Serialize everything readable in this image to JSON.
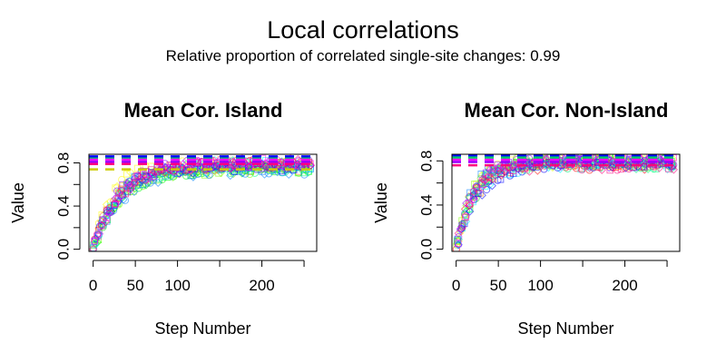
{
  "title": "Local correlations",
  "subtitle": "Relative proportion of correlated single-site changes: 0.99",
  "colors": {
    "series": [
      "#ff0000",
      "#ff8000",
      "#ffff00",
      "#80ff00",
      "#00ff00",
      "#00ff80",
      "#00ffff",
      "#0080ff",
      "#0000ff",
      "#8000ff",
      "#ff00ff",
      "#ff0080"
    ],
    "reference_lines": [
      "#0000ff",
      "#00cc66",
      "#ff00ff",
      "#9900ff",
      "#ff0080",
      "#cccc00"
    ]
  },
  "chart_data": [
    {
      "type": "scatter",
      "title": "Mean Cor. Island",
      "xlabel": "Step Number",
      "ylabel": "Value",
      "xlim": [
        -5,
        265
      ],
      "ylim": [
        -0.02,
        0.88
      ],
      "x_ticks": [
        0,
        50,
        100,
        150,
        200,
        250
      ],
      "x_tick_labels": [
        "0",
        "50",
        "100",
        "",
        "200",
        ""
      ],
      "y_ticks": [
        0.0,
        0.4,
        0.8
      ],
      "y_tick_labels": [
        "0.0",
        "0.4",
        "0.8"
      ],
      "y_minor_ticks": [
        0.2,
        0.6
      ],
      "grid": false,
      "reference_lines_y": [
        0.86,
        0.84,
        0.83,
        0.81,
        0.79,
        0.74
      ],
      "curve_model": {
        "asymptote": 0.77,
        "rate": 0.036,
        "n_series": 12,
        "points_per_series": 55
      }
    },
    {
      "type": "scatter",
      "title": "Mean Cor. Non-Island",
      "xlabel": "Step Number",
      "ylabel": "Value",
      "xlim": [
        -5,
        265
      ],
      "ylim": [
        -0.02,
        0.86
      ],
      "x_ticks": [
        0,
        50,
        100,
        150,
        200,
        250
      ],
      "x_tick_labels": [
        "0",
        "50",
        "100",
        "",
        "200",
        ""
      ],
      "y_ticks": [
        0.0,
        0.4,
        0.8
      ],
      "y_tick_labels": [
        "0.0",
        "0.4",
        "0.8"
      ],
      "y_minor_ticks": [
        0.2,
        0.6
      ],
      "grid": false,
      "reference_lines_y": [
        0.85,
        0.83,
        0.81,
        0.79,
        0.76
      ],
      "curve_model": {
        "asymptote": 0.79,
        "rate": 0.045,
        "n_series": 12,
        "points_per_series": 55
      }
    }
  ]
}
